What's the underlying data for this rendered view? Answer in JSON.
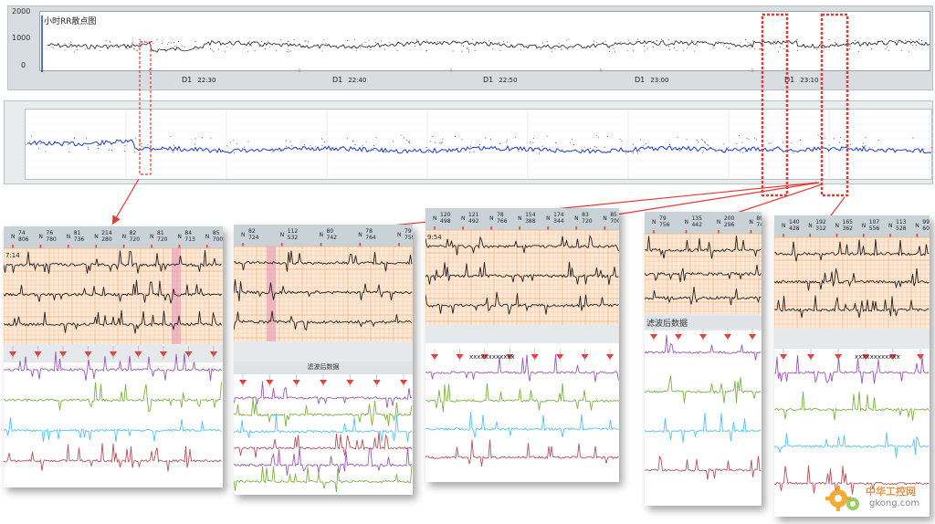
{
  "top_chart": {
    "title": "小时RR散点图",
    "y_ticks": [
      "2000",
      "1000",
      "0"
    ],
    "x_labels": [
      {
        "day": "D1",
        "time": "22:30"
      },
      {
        "day": "D1",
        "time": "22:40"
      },
      {
        "day": "D1",
        "time": "22:50"
      },
      {
        "day": "D1",
        "time": "23:00"
      },
      {
        "day": "D1",
        "time": "23:10"
      }
    ]
  },
  "panels": [
    {
      "id": "p1",
      "time_tag": "7:14",
      "beats": [
        {
          "t": "N",
          "v": "74\n806"
        },
        {
          "t": "N",
          "v": "76\n780"
        },
        {
          "t": "N",
          "v": "81\n736"
        },
        {
          "t": "N",
          "v": "214\n280"
        },
        {
          "t": "N",
          "v": "82\n720"
        },
        {
          "t": "N",
          "v": "81\n720"
        },
        {
          "t": "N",
          "v": "84\n713"
        },
        {
          "t": "N",
          "v": "85\n700"
        }
      ],
      "filter_label": ""
    },
    {
      "id": "p2",
      "time_tag": "",
      "beats": [
        {
          "t": "N",
          "v": "82\n724"
        },
        {
          "t": "N",
          "v": "112\n532"
        },
        {
          "t": "N",
          "v": "80\n742"
        },
        {
          "t": "N",
          "v": "78\n764"
        },
        {
          "t": "N",
          "v": "79\n759"
        }
      ],
      "filter_label": "滤波后数据"
    },
    {
      "id": "p3",
      "time_tag": "9:54",
      "beats": [
        {
          "t": "N",
          "v": "120\n498"
        },
        {
          "t": "N",
          "v": "121\n492"
        },
        {
          "t": "N",
          "v": "78\n766"
        },
        {
          "t": "N",
          "v": "154\n388"
        },
        {
          "t": "N",
          "v": "174\n344"
        },
        {
          "t": "N",
          "v": "83\n720"
        },
        {
          "t": "N",
          "v": "85\n700"
        }
      ],
      "filter_label": ""
    },
    {
      "id": "p4",
      "time_tag": "",
      "beats": [
        {
          "t": "N",
          "v": "79\n756"
        },
        {
          "t": "N",
          "v": "135\n442"
        },
        {
          "t": "N",
          "v": "200\n296"
        },
        {
          "t": "N",
          "v": "80\n746"
        }
      ],
      "filter_label": "滤波后数据"
    },
    {
      "id": "p5",
      "time_tag": "",
      "beats": [
        {
          "t": "N",
          "v": "140\n428"
        },
        {
          "t": "N",
          "v": "192\n312"
        },
        {
          "t": "N",
          "v": "165\n362"
        },
        {
          "t": "N",
          "v": "107\n556"
        },
        {
          "t": "N",
          "v": "113\n528"
        },
        {
          "t": "N",
          "v": "99\n602"
        }
      ],
      "filter_label": ""
    }
  ],
  "watermark": {
    "cn": "中华工控网",
    "domain": "gkong.com"
  },
  "colors": {
    "ecg_grid": "#f5b37a",
    "ecg_bg": "#fbe8d6",
    "trace_purple": "#9b59b6",
    "trace_green": "#7cb342",
    "trace_blue": "#4fc3f7",
    "trace_red": "#b5525c",
    "marker_red": "#e53935",
    "scatter_blue": "#1f3fcf"
  }
}
